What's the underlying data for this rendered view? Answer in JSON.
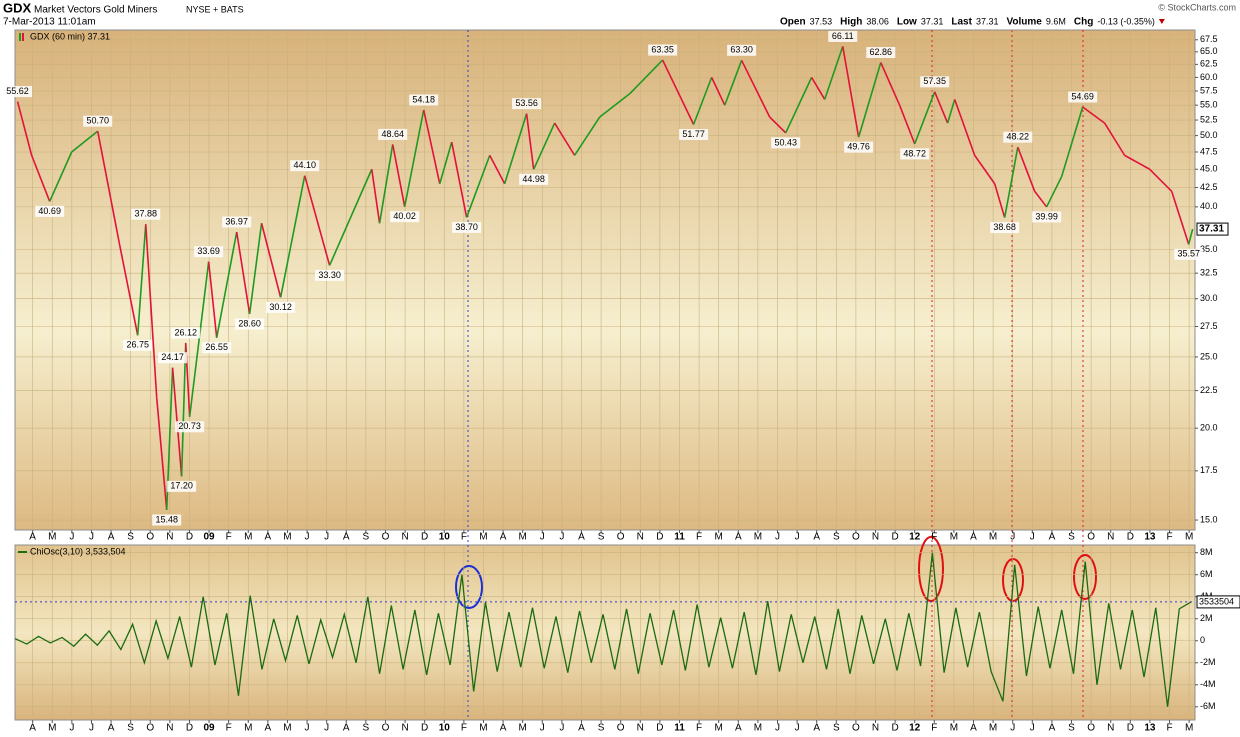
{
  "header": {
    "symbol": "GDX",
    "name": "Market Vectors Gold Miners",
    "exchange": "NYSE + BATS",
    "date": "7-Mar-2013 11:01am",
    "copyright": "© StockCharts.com",
    "quote": [
      {
        "label": "Open",
        "value": "37.53"
      },
      {
        "label": "High",
        "value": "38.06"
      },
      {
        "label": "Low",
        "value": "37.31"
      },
      {
        "label": "Last",
        "value": "37.31"
      },
      {
        "label": "Volume",
        "value": "9.6M"
      },
      {
        "label": "Chg",
        "value": "-0.13 (-0.35%)"
      }
    ]
  },
  "chart_data": [
    {
      "type": "line",
      "log_scale": true,
      "grid": true,
      "xlim": [
        -0.9,
        59.3
      ],
      "xticks": [
        {
          "value": 0,
          "label": "A"
        },
        {
          "value": 1,
          "label": "M"
        },
        {
          "value": 2,
          "label": "J"
        },
        {
          "value": 3,
          "label": "J"
        },
        {
          "value": 4,
          "label": "A"
        },
        {
          "value": 5,
          "label": "S"
        },
        {
          "value": 6,
          "label": "O"
        },
        {
          "value": 7,
          "label": "N"
        },
        {
          "value": 8,
          "label": "D"
        },
        {
          "value": 9,
          "label": "09"
        },
        {
          "value": 10,
          "label": "F"
        },
        {
          "value": 11,
          "label": "M"
        },
        {
          "value": 12,
          "label": "A"
        },
        {
          "value": 13,
          "label": "M"
        },
        {
          "value": 14,
          "label": "J"
        },
        {
          "value": 15,
          "label": "J"
        },
        {
          "value": 16,
          "label": "A"
        },
        {
          "value": 17,
          "label": "S"
        },
        {
          "value": 18,
          "label": "O"
        },
        {
          "value": 19,
          "label": "N"
        },
        {
          "value": 20,
          "label": "D"
        },
        {
          "value": 21,
          "label": "10"
        },
        {
          "value": 22,
          "label": "F"
        },
        {
          "value": 23,
          "label": "M"
        },
        {
          "value": 24,
          "label": "A"
        },
        {
          "value": 25,
          "label": "M"
        },
        {
          "value": 26,
          "label": "J"
        },
        {
          "value": 27,
          "label": "J"
        },
        {
          "value": 28,
          "label": "A"
        },
        {
          "value": 29,
          "label": "S"
        },
        {
          "value": 30,
          "label": "O"
        },
        {
          "value": 31,
          "label": "N"
        },
        {
          "value": 32,
          "label": "D"
        },
        {
          "value": 33,
          "label": "11"
        },
        {
          "value": 34,
          "label": "F"
        },
        {
          "value": 35,
          "label": "M"
        },
        {
          "value": 36,
          "label": "A"
        },
        {
          "value": 37,
          "label": "M"
        },
        {
          "value": 38,
          "label": "J"
        },
        {
          "value": 39,
          "label": "J"
        },
        {
          "value": 40,
          "label": "A"
        },
        {
          "value": 41,
          "label": "S"
        },
        {
          "value": 42,
          "label": "O"
        },
        {
          "value": 43,
          "label": "N"
        },
        {
          "value": 44,
          "label": "D"
        },
        {
          "value": 45,
          "label": "12"
        },
        {
          "value": 46,
          "label": "F"
        },
        {
          "value": 47,
          "label": "M"
        },
        {
          "value": 48,
          "label": "A"
        },
        {
          "value": 49,
          "label": "M"
        },
        {
          "value": 50,
          "label": "J"
        },
        {
          "value": 51,
          "label": "J"
        },
        {
          "value": 52,
          "label": "A"
        },
        {
          "value": 53,
          "label": "S"
        },
        {
          "value": 54,
          "label": "O"
        },
        {
          "value": 55,
          "label": "N"
        },
        {
          "value": 56,
          "label": "D"
        },
        {
          "value": 57,
          "label": "13"
        },
        {
          "value": 58,
          "label": "F"
        },
        {
          "value": 59,
          "label": "M"
        }
      ],
      "ylim": [
        14.54,
        69.6
      ],
      "yticks": [
        {
          "value": 15,
          "label": "15.0"
        },
        17.5,
        {
          "value": 20,
          "label": "20.0"
        },
        22.5,
        {
          "value": 25,
          "label": "25.0"
        },
        27.5,
        {
          "value": 30,
          "label": "30.0"
        },
        32.5,
        {
          "value": 35,
          "label": "35.0"
        },
        {
          "value": 40,
          "label": "40.0"
        },
        42.5,
        {
          "value": 45,
          "label": "45.0"
        },
        47.5,
        {
          "value": 50,
          "label": "50.0"
        },
        52.5,
        {
          "value": 55,
          "label": "55.0"
        },
        57.5,
        {
          "value": 60,
          "label": "60.0"
        },
        62.5,
        {
          "value": 65,
          "label": "65.0"
        },
        67.5
      ],
      "series": [
        {
          "name": "GDX (60 min) 37.31",
          "up_color": "#1f9a1f",
          "color": "#e3123a",
          "x": [
            -0.77,
            -0.05,
            0.87,
            1.99,
            3.32,
            4.44,
            5.36,
            5.77,
            6.33,
            6.84,
            7.14,
            7.6,
            7.81,
            8.01,
            8.98,
            9.39,
            10.41,
            11.07,
            11.68,
            12.65,
            13.88,
            15.15,
            17.3,
            17.7,
            18.37,
            18.98,
            19.95,
            20.77,
            21.38,
            22.14,
            23.32,
            24.08,
            25.2,
            25.56,
            26.63,
            27.65,
            28.93,
            30.46,
            32.14,
            33.72,
            34.64,
            35.31,
            36.17,
            37.6,
            38.42,
            39.74,
            40.41,
            41.33,
            42.14,
            43.27,
            44.23,
            45.0,
            46.02,
            46.68,
            47.04,
            48.06,
            49.08,
            49.59,
            50.26,
            51.12,
            51.73,
            52.5,
            53.57,
            54.69,
            55.71,
            56.99,
            58.11,
            58.98,
            59.18
          ],
          "values": [
            55.62,
            47.0,
            40.69,
            47.5,
            50.7,
            35.5,
            26.75,
            37.88,
            22.0,
            15.48,
            24.17,
            17.2,
            26.12,
            20.73,
            33.69,
            26.55,
            36.97,
            28.6,
            38.0,
            30.12,
            44.1,
            33.3,
            45.0,
            38.0,
            48.64,
            40.02,
            54.18,
            43.0,
            49.0,
            38.7,
            47.0,
            43.0,
            53.56,
            44.98,
            52.0,
            47.0,
            53.0,
            57.0,
            63.35,
            51.77,
            60.0,
            55.0,
            63.3,
            53.0,
            50.43,
            60.0,
            56.0,
            66.11,
            49.76,
            62.86,
            55.0,
            48.72,
            57.35,
            52.0,
            56.0,
            47.0,
            43.0,
            38.68,
            48.22,
            42.0,
            39.99,
            44.0,
            54.69,
            52.0,
            47.0,
            45.0,
            42.0,
            35.57,
            37.31
          ],
          "value_labels": [
            "55.62",
            null,
            "40.69",
            null,
            "50.70",
            null,
            "26.75",
            "37.88",
            null,
            "15.48",
            "24.17",
            "17.20",
            "26.12",
            "20.73",
            "33.69",
            "26.55",
            "36.97",
            "28.60",
            null,
            "30.12",
            "44.10",
            "33.30",
            null,
            null,
            "48.64",
            "40.02",
            "54.18",
            null,
            null,
            "38.70",
            null,
            null,
            "53.56",
            "44.98",
            null,
            null,
            null,
            null,
            "63.35",
            "51.77",
            null,
            null,
            "63.30",
            null,
            "50.43",
            null,
            null,
            "66.11",
            "49.76",
            "62.86",
            null,
            "48.72",
            "57.35",
            null,
            null,
            null,
            null,
            "38.68",
            "48.22",
            null,
            "39.99",
            null,
            "54.69",
            null,
            null,
            null,
            null,
            "35.57",
            "37.31"
          ]
        }
      ]
    },
    {
      "type": "line",
      "grid": true,
      "xlim": [
        -0.9,
        59.3
      ],
      "xticks": [
        {
          "value": 0,
          "label": "A"
        },
        {
          "value": 1,
          "label": "M"
        },
        {
          "value": 2,
          "label": "J"
        },
        {
          "value": 3,
          "label": "J"
        },
        {
          "value": 4,
          "label": "A"
        },
        {
          "value": 5,
          "label": "S"
        },
        {
          "value": 6,
          "label": "O"
        },
        {
          "value": 7,
          "label": "N"
        },
        {
          "value": 8,
          "label": "D"
        },
        {
          "value": 9,
          "label": "09"
        },
        {
          "value": 10,
          "label": "F"
        },
        {
          "value": 11,
          "label": "M"
        },
        {
          "value": 12,
          "label": "A"
        },
        {
          "value": 13,
          "label": "M"
        },
        {
          "value": 14,
          "label": "J"
        },
        {
          "value": 15,
          "label": "J"
        },
        {
          "value": 16,
          "label": "A"
        },
        {
          "value": 17,
          "label": "S"
        },
        {
          "value": 18,
          "label": "O"
        },
        {
          "value": 19,
          "label": "N"
        },
        {
          "value": 20,
          "label": "D"
        },
        {
          "value": 21,
          "label": "10"
        },
        {
          "value": 22,
          "label": "F"
        },
        {
          "value": 23,
          "label": "M"
        },
        {
          "value": 24,
          "label": "A"
        },
        {
          "value": 25,
          "label": "M"
        },
        {
          "value": 26,
          "label": "J"
        },
        {
          "value": 27,
          "label": "J"
        },
        {
          "value": 28,
          "label": "A"
        },
        {
          "value": 29,
          "label": "S"
        },
        {
          "value": 30,
          "label": "O"
        },
        {
          "value": 31,
          "label": "N"
        },
        {
          "value": 32,
          "label": "D"
        },
        {
          "value": 33,
          "label": "11"
        },
        {
          "value": 34,
          "label": "F"
        },
        {
          "value": 35,
          "label": "M"
        },
        {
          "value": 36,
          "label": "A"
        },
        {
          "value": 37,
          "label": "M"
        },
        {
          "value": 38,
          "label": "J"
        },
        {
          "value": 39,
          "label": "J"
        },
        {
          "value": 40,
          "label": "A"
        },
        {
          "value": 41,
          "label": "S"
        },
        {
          "value": 42,
          "label": "O"
        },
        {
          "value": 43,
          "label": "N"
        },
        {
          "value": 44,
          "label": "D"
        },
        {
          "value": 45,
          "label": "12"
        },
        {
          "value": 46,
          "label": "F"
        },
        {
          "value": 47,
          "label": "M"
        },
        {
          "value": 48,
          "label": "A"
        },
        {
          "value": 49,
          "label": "M"
        },
        {
          "value": 50,
          "label": "J"
        },
        {
          "value": 51,
          "label": "J"
        },
        {
          "value": 52,
          "label": "A"
        },
        {
          "value": 53,
          "label": "S"
        },
        {
          "value": 54,
          "label": "O"
        },
        {
          "value": 55,
          "label": "N"
        },
        {
          "value": 56,
          "label": "D"
        },
        {
          "value": 57,
          "label": "13"
        },
        {
          "value": 58,
          "label": "F"
        },
        {
          "value": 59,
          "label": "M"
        }
      ],
      "ylim": [
        -7.2,
        8.7
      ],
      "yticks": [
        {
          "value": -6,
          "label": "-6M"
        },
        {
          "value": -4,
          "label": "-4M"
        },
        {
          "value": -2,
          "label": "-2M"
        },
        0,
        {
          "value": 2,
          "label": "2M"
        },
        {
          "value": 4,
          "label": "4M"
        },
        {
          "value": 6,
          "label": "6M"
        },
        {
          "value": 8,
          "label": "8M"
        }
      ],
      "last_label": "3533504",
      "series": [
        {
          "name": "ChiOsc(3,10) 3,533,504",
          "color": "#1b6b10",
          "x": [
            -0.9,
            -0.3,
            0.3,
            0.9,
            1.5,
            2.1,
            2.7,
            3.3,
            3.9,
            4.5,
            5.1,
            5.7,
            6.3,
            6.9,
            7.5,
            8.1,
            8.7,
            9.3,
            9.9,
            10.5,
            11.1,
            11.7,
            12.3,
            12.9,
            13.5,
            14.1,
            14.7,
            15.3,
            15.9,
            16.5,
            17.1,
            17.7,
            18.3,
            18.9,
            19.5,
            20.1,
            20.7,
            21.3,
            21.9,
            22.5,
            23.1,
            23.7,
            24.3,
            24.9,
            25.5,
            26.1,
            26.7,
            27.3,
            27.9,
            28.5,
            29.1,
            29.7,
            30.3,
            30.9,
            31.5,
            32.1,
            32.7,
            33.3,
            33.9,
            34.5,
            35.1,
            35.7,
            36.3,
            36.9,
            37.5,
            38.1,
            38.7,
            39.3,
            39.9,
            40.5,
            41.1,
            41.7,
            42.3,
            42.9,
            43.5,
            44.1,
            44.7,
            45.3,
            45.9,
            46.5,
            47.1,
            47.7,
            48.3,
            48.9,
            49.5,
            50.1,
            50.7,
            51.3,
            51.9,
            52.5,
            53.1,
            53.7,
            54.3,
            54.9,
            55.5,
            56.1,
            56.7,
            57.3,
            57.9,
            58.5,
            59.1
          ],
          "values": [
            0.2,
            -0.3,
            0.4,
            -0.2,
            0.3,
            -0.5,
            0.6,
            -0.4,
            0.9,
            -0.8,
            1.5,
            -2.0,
            1.8,
            -1.6,
            2.2,
            -2.4,
            4.0,
            -2.2,
            2.5,
            -5.0,
            4.1,
            -2.6,
            2.0,
            -1.8,
            2.3,
            -2.1,
            1.9,
            -1.5,
            2.4,
            -2.0,
            4.0,
            -3.0,
            3.2,
            -2.6,
            2.8,
            -3.1,
            2.5,
            -2.2,
            6.0,
            -4.6,
            3.5,
            -2.8,
            2.6,
            -2.4,
            3.0,
            -2.5,
            2.2,
            -2.9,
            2.7,
            -2.0,
            2.4,
            -2.6,
            2.9,
            -3.0,
            2.5,
            -2.2,
            2.8,
            -2.7,
            3.3,
            -2.4,
            2.1,
            -2.5,
            2.6,
            -3.1,
            3.6,
            -2.8,
            2.4,
            -2.0,
            2.2,
            -2.6,
            2.9,
            -3.0,
            2.3,
            -2.1,
            2.0,
            -2.7,
            2.5,
            -2.3,
            8.0,
            -2.9,
            3.0,
            -2.4,
            2.6,
            -2.8,
            -5.5,
            6.9,
            -3.2,
            3.1,
            -2.5,
            2.8,
            -3.0,
            7.2,
            -4.0,
            3.4,
            -2.6,
            2.8,
            -3.3,
            3.0,
            -6.0,
            2.9,
            3.53
          ]
        }
      ]
    }
  ]
}
